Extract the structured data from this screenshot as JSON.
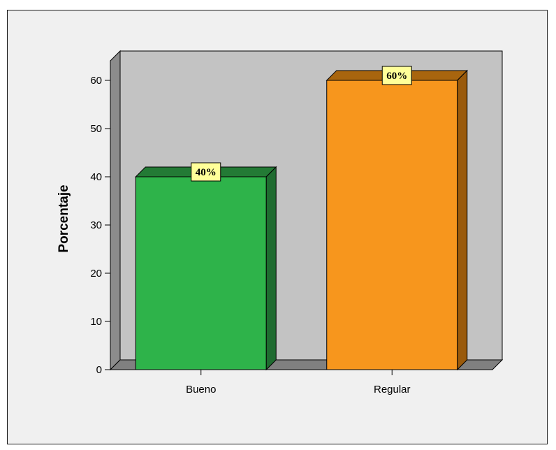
{
  "chart_data": {
    "type": "bar",
    "categories": [
      "Bueno",
      "Regular"
    ],
    "values": [
      40,
      60
    ],
    "data_labels": [
      "40%",
      "60%"
    ],
    "title": "",
    "xlabel": "",
    "ylabel": "Porcentaje",
    "ylim": [
      0,
      60
    ],
    "yticks": [
      "0",
      "10",
      "20",
      "30",
      "40",
      "50",
      "60"
    ],
    "grid": false,
    "legend": "none",
    "colors": {
      "bars": [
        "#2eb34a",
        "#f7961d"
      ],
      "bar_tops": [
        "#237a35",
        "#a8650e"
      ],
      "bar_sides": [
        "#1f6b30",
        "#9a5a0b"
      ],
      "back_wall": "#c3c3c3",
      "floor": "#808080",
      "side_wall": "#8c8c8c",
      "label_box": "#ffff99"
    }
  }
}
